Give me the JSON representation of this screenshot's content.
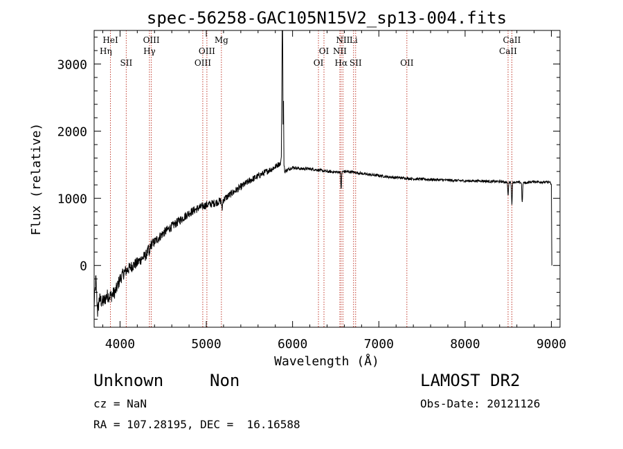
{
  "chart_data": {
    "type": "line",
    "title": "spec-56258-GAC105N15V2_sp13-004.fits",
    "xlabel": "Wavelength (Å)",
    "ylabel": "Flux (relative)",
    "xlim": [
      3700,
      9100
    ],
    "ylim": [
      -920,
      3500
    ],
    "x_ticks": [
      4000,
      5000,
      6000,
      7000,
      8000,
      9000
    ],
    "y_ticks": [
      0,
      1000,
      2000,
      3000
    ],
    "x_tick_labels": [
      "4000",
      "5000",
      "6000",
      "7000",
      "8000",
      "9000"
    ],
    "y_tick_labels": [
      "0",
      "1000",
      "2000",
      "3000"
    ],
    "grid": false,
    "series": [
      {
        "color": "#000000",
        "anchors": [
          [
            3700,
            -600
          ],
          [
            3720,
            -200
          ],
          [
            3740,
            -700
          ],
          [
            3760,
            -500
          ],
          [
            3800,
            -550
          ],
          [
            3850,
            -450
          ],
          [
            3900,
            -450
          ],
          [
            3950,
            -380
          ],
          [
            4000,
            -200
          ],
          [
            4050,
            -100
          ],
          [
            4100,
            -50
          ],
          [
            4150,
            0
          ],
          [
            4200,
            40
          ],
          [
            4250,
            100
          ],
          [
            4300,
            150
          ],
          [
            4350,
            300
          ],
          [
            4400,
            350
          ],
          [
            4500,
            480
          ],
          [
            4600,
            580
          ],
          [
            4700,
            680
          ],
          [
            4800,
            780
          ],
          [
            4900,
            850
          ],
          [
            5000,
            900
          ],
          [
            5100,
            930
          ],
          [
            5200,
            980
          ],
          [
            5300,
            1080
          ],
          [
            5400,
            1170
          ],
          [
            5500,
            1260
          ],
          [
            5600,
            1330
          ],
          [
            5700,
            1400
          ],
          [
            5780,
            1450
          ],
          [
            5830,
            1500
          ],
          [
            5860,
            1520
          ],
          [
            5870,
            1620
          ],
          [
            5880,
            3500
          ],
          [
            5885,
            3500
          ],
          [
            5890,
            2100
          ],
          [
            5895,
            2450
          ],
          [
            5900,
            1500
          ],
          [
            5910,
            1400
          ],
          [
            5950,
            1430
          ],
          [
            6000,
            1460
          ],
          [
            6100,
            1440
          ],
          [
            6200,
            1440
          ],
          [
            6300,
            1420
          ],
          [
            6400,
            1400
          ],
          [
            6500,
            1390
          ],
          [
            6600,
            1400
          ],
          [
            6700,
            1390
          ],
          [
            6800,
            1370
          ],
          [
            6900,
            1350
          ],
          [
            7000,
            1340
          ],
          [
            7100,
            1320
          ],
          [
            7200,
            1310
          ],
          [
            7300,
            1300
          ],
          [
            7400,
            1290
          ],
          [
            7500,
            1285
          ],
          [
            7600,
            1280
          ],
          [
            7700,
            1275
          ],
          [
            7800,
            1270
          ],
          [
            7900,
            1265
          ],
          [
            8000,
            1260
          ],
          [
            8100,
            1260
          ],
          [
            8200,
            1260
          ],
          [
            8300,
            1250
          ],
          [
            8400,
            1250
          ],
          [
            8500,
            1240
          ],
          [
            8600,
            1240
          ],
          [
            8700,
            1230
          ],
          [
            8800,
            1250
          ],
          [
            8900,
            1240
          ],
          [
            8980,
            1240
          ],
          [
            9000,
            1200
          ],
          [
            9005,
            0
          ]
        ],
        "absorption": [
          [
            6563,
            -250
          ],
          [
            8498,
            -200
          ],
          [
            8542,
            -330
          ],
          [
            8662,
            -300
          ],
          [
            4340,
            -150
          ],
          [
            5183,
            -150
          ]
        ],
        "noise_amplitude": [
          [
            3700,
            110
          ],
          [
            4500,
            70
          ],
          [
            5800,
            45
          ],
          [
            6000,
            22
          ],
          [
            9000,
            18
          ]
        ]
      }
    ],
    "line_markers": [
      {
        "wavelength": 3889,
        "color": "#c0392b"
      },
      {
        "wavelength": 4072,
        "color": "#c0392b"
      },
      {
        "wavelength": 4341,
        "color": "#c0392b"
      },
      {
        "wavelength": 4363,
        "color": "#c0392b"
      },
      {
        "wavelength": 4959,
        "color": "#c0392b"
      },
      {
        "wavelength": 5007,
        "color": "#c0392b"
      },
      {
        "wavelength": 5175,
        "color": "#c0392b"
      },
      {
        "wavelength": 6300,
        "color": "#c0392b"
      },
      {
        "wavelength": 6364,
        "color": "#c0392b"
      },
      {
        "wavelength": 6548,
        "color": "#c0392b"
      },
      {
        "wavelength": 6563,
        "color": "#c0392b"
      },
      {
        "wavelength": 6584,
        "color": "#c0392b"
      },
      {
        "wavelength": 6707,
        "color": "#c0392b"
      },
      {
        "wavelength": 6731,
        "color": "#c0392b"
      },
      {
        "wavelength": 7325,
        "color": "#c0392b"
      },
      {
        "wavelength": 8498,
        "color": "#c0392b"
      },
      {
        "wavelength": 8542,
        "color": "#c0392b"
      }
    ],
    "line_labels": [
      {
        "text": "HeI",
        "wavelength": 3889,
        "row": 0
      },
      {
        "text": "Hη",
        "wavelength": 3835,
        "row": 1
      },
      {
        "text": "SII",
        "wavelength": 4072,
        "row": 2
      },
      {
        "text": "OIII",
        "wavelength": 4363,
        "row": 0
      },
      {
        "text": "Hγ",
        "wavelength": 4341,
        "row": 1
      },
      {
        "text": "OIII",
        "wavelength": 5007,
        "row": 1
      },
      {
        "text": "OIII",
        "wavelength": 4959,
        "row": 2
      },
      {
        "text": "Mg",
        "wavelength": 5175,
        "row": 0
      },
      {
        "text": "OI",
        "wavelength": 6364,
        "row": 1
      },
      {
        "text": "OI",
        "wavelength": 6300,
        "row": 2
      },
      {
        "text": "NII",
        "wavelength": 6584,
        "row": 0
      },
      {
        "text": "Li",
        "wavelength": 6707,
        "row": 0
      },
      {
        "text": "NII",
        "wavelength": 6548,
        "row": 1
      },
      {
        "text": "Hα",
        "wavelength": 6563,
        "row": 2
      },
      {
        "text": "SII",
        "wavelength": 6731,
        "row": 2
      },
      {
        "text": "OII",
        "wavelength": 7325,
        "row": 2
      },
      {
        "text": "CaII",
        "wavelength": 8542,
        "row": 0
      },
      {
        "text": "CaII",
        "wavelength": 8498,
        "row": 1
      }
    ]
  },
  "info": {
    "object_class": "Unknown",
    "subclass": "Non",
    "survey": "LAMOST DR2",
    "cz": "cz = NaN",
    "obs_date": "Obs-Date: 20121126",
    "coords": "RA = 107.28195, DEC =  16.16588"
  }
}
